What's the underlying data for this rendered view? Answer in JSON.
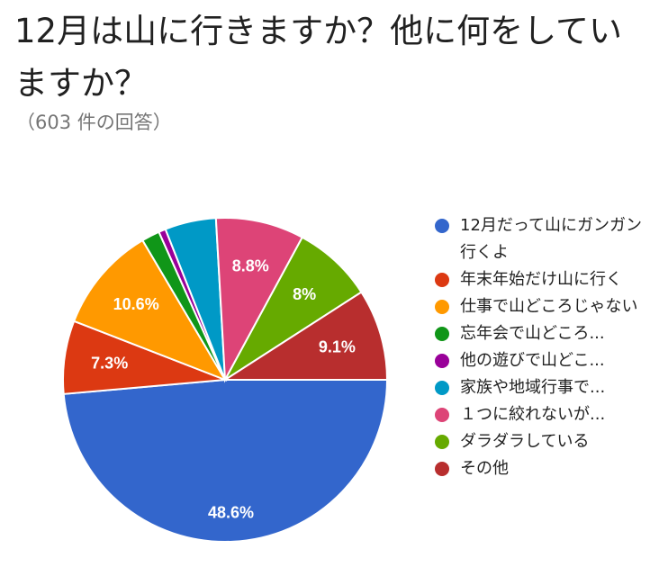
{
  "title": "12月は山に行きますか？他に何をしていますか？",
  "subtitle": "（603 件の回答）",
  "chart_data": {
    "type": "pie",
    "slices": [
      {
        "label": "12月だって山にガンガン行くよ",
        "value": 48.6,
        "display": "48.6%",
        "color": "#3366cc"
      },
      {
        "label": "年末年始だけ山に行く",
        "value": 7.3,
        "display": "7.3%",
        "color": "#dc3912"
      },
      {
        "label": "仕事で山どころじゃない",
        "value": 10.6,
        "display": "10.6%",
        "color": "#ff9900"
      },
      {
        "label": "忘年会で山どころ...",
        "value": 1.8,
        "display": "",
        "color": "#109618"
      },
      {
        "label": "他の遊びで山どこ...",
        "value": 0.7,
        "display": "",
        "color": "#990099"
      },
      {
        "label": "家族や地域行事で...",
        "value": 5.1,
        "display": "",
        "color": "#0099c6"
      },
      {
        "label": "１つに絞れないが...",
        "value": 8.8,
        "display": "8.8%",
        "color": "#dd4477"
      },
      {
        "label": "ダラダラしている",
        "value": 8.0,
        "display": "8%",
        "color": "#66aa00"
      },
      {
        "label": "その他",
        "value": 9.1,
        "display": "9.1%",
        "color": "#b82e2e"
      }
    ],
    "legend_position": "right"
  }
}
